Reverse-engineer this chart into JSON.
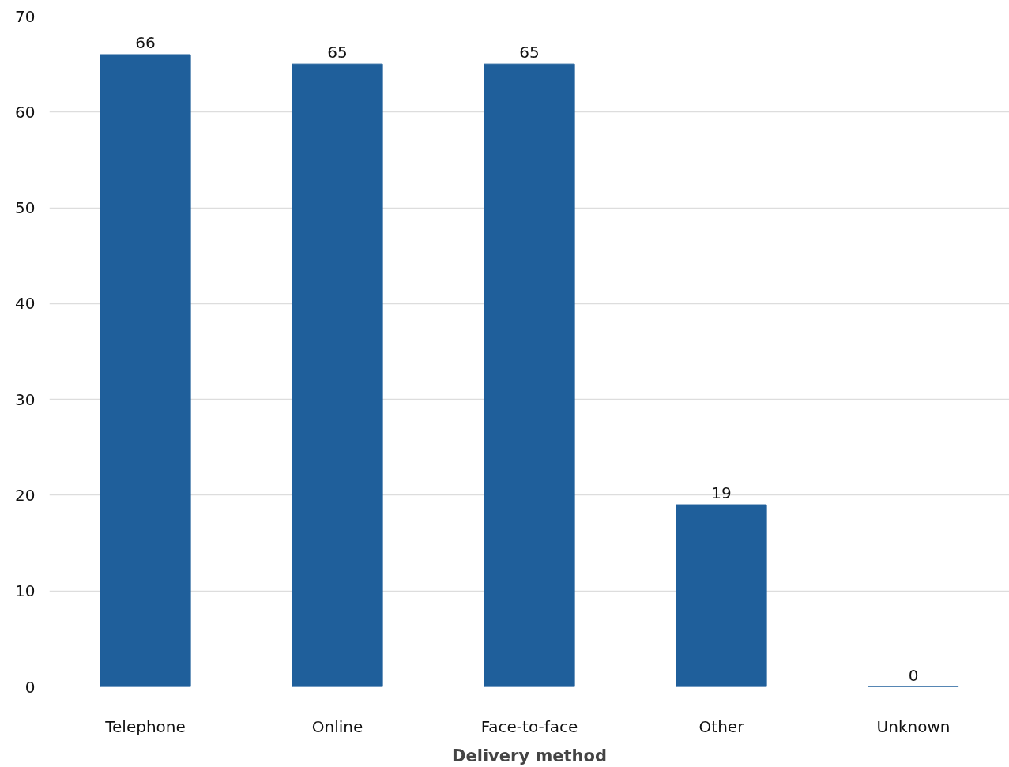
{
  "chart_data": {
    "type": "bar",
    "xlabel": "Delivery method",
    "categories": [
      "Telephone",
      "Online",
      "Face-to-face",
      "Other",
      "Unknown"
    ],
    "values": [
      66,
      65,
      65,
      19,
      0
    ],
    "color": "#1f5f9b",
    "ylim": [
      0,
      70
    ],
    "yticks": [
      0,
      10,
      20,
      30,
      40,
      50,
      60,
      70
    ],
    "grid": "y",
    "data_labels": true
  }
}
